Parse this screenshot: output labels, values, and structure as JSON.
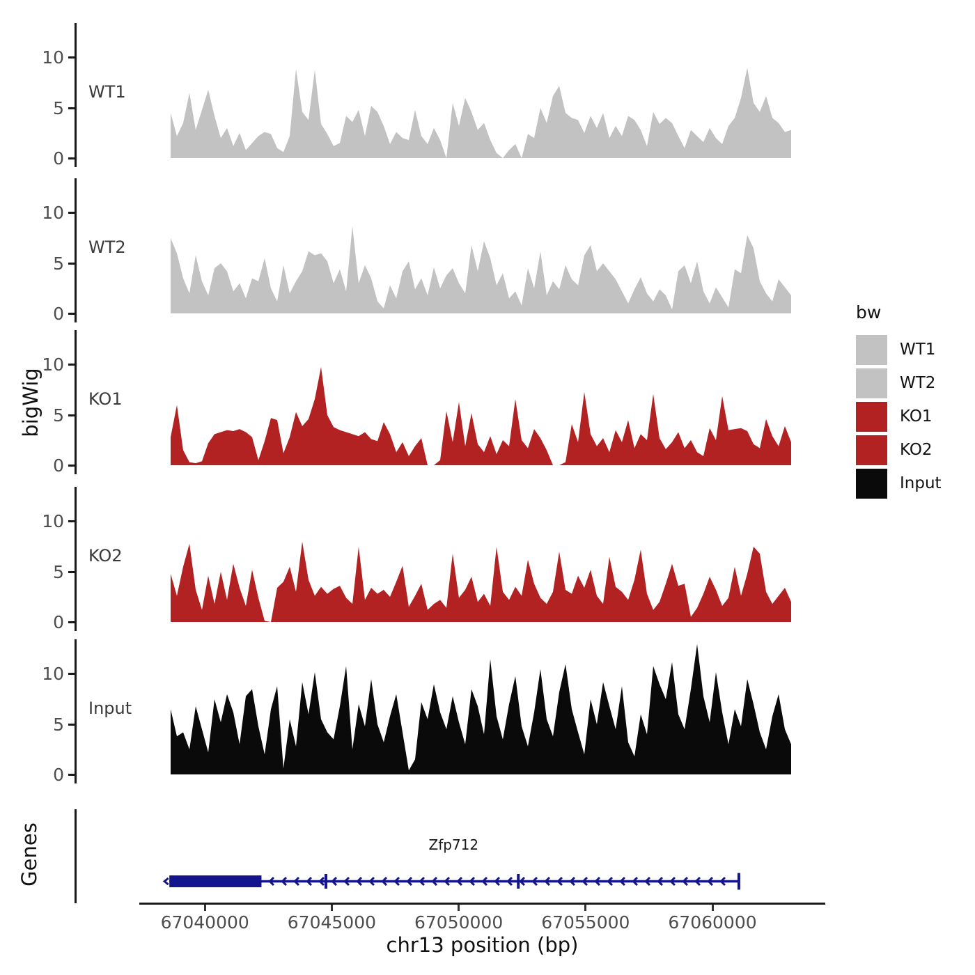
{
  "figure": {
    "y_axis_title": "bigWig",
    "genes_axis_title": "Genes",
    "x_axis_title": "chr13 position (bp)"
  },
  "colors": {
    "gray": "#c2c2c2",
    "red": "#b22222",
    "black": "#0a0a0a",
    "gene_blue": "#14148c",
    "axis": "#1a1a1a",
    "tick_text": "#4d4d4d"
  },
  "legend": {
    "title": "bw",
    "items": [
      {
        "label": "WT1",
        "color": "#c2c2c2"
      },
      {
        "label": "WT2",
        "color": "#c2c2c2"
      },
      {
        "label": "KO1",
        "color": "#b22222"
      },
      {
        "label": "KO2",
        "color": "#b22222"
      },
      {
        "label": "Input",
        "color": "#0a0a0a"
      }
    ]
  },
  "x_axis": {
    "tick_values": [
      67040000,
      67045000,
      67050000,
      67055000,
      67060000
    ],
    "tick_labels": [
      "67040000",
      "67045000",
      "67050000",
      "67055000",
      "67060000"
    ]
  },
  "y_axis": {
    "tick_values": [
      0,
      5,
      10
    ],
    "tick_labels": [
      "0",
      "5",
      "10"
    ],
    "display_max": 13.4
  },
  "chart_data": {
    "type": "area",
    "title": "",
    "xlabel": "chr13 position (bp)",
    "ylabel": "bigWig",
    "x_range_bp": [
      67038650,
      67063100
    ],
    "ylim": [
      0,
      13.4
    ],
    "grid": false,
    "legend_position": "right",
    "tracks": [
      {
        "name": "WT1",
        "color": "#c2c2c2",
        "values": [
          4.5,
          2.2,
          3.5,
          6.5,
          2.8,
          4.8,
          6.8,
          4.2,
          2.0,
          3.0,
          1.2,
          2.5,
          0.8,
          1.5,
          2.2,
          2.6,
          2.4,
          1.0,
          0.6,
          2.2,
          8.9,
          4.6,
          3.8,
          8.8,
          3.4,
          2.4,
          1.2,
          1.5,
          4.2,
          3.6,
          4.8,
          2.2,
          5.2,
          4.6,
          3.2,
          1.4,
          2.6,
          2.0,
          1.8,
          4.8,
          2.2,
          1.4,
          3.0,
          1.8,
          0.0,
          5.5,
          3.2,
          6.0,
          4.6,
          2.8,
          3.5,
          1.8,
          0.5,
          0.0,
          0.8,
          1.4,
          0.0,
          2.4,
          2.0,
          5.0,
          3.5,
          6.2,
          7.2,
          4.5,
          4.0,
          3.8,
          2.5,
          4.2,
          3.0,
          4.5,
          2.0,
          3.2,
          2.2,
          4.2,
          3.8,
          2.8,
          1.2,
          4.6,
          3.4,
          4.0,
          3.5,
          2.2,
          1.0,
          2.8,
          2.2,
          1.6,
          3.0,
          2.0,
          1.4,
          3.2,
          4.0,
          6.0,
          9.0,
          5.5,
          4.6,
          6.2,
          4.0,
          3.5,
          2.6,
          2.8
        ]
      },
      {
        "name": "WT2",
        "color": "#c2c2c2",
        "values": [
          7.5,
          6.0,
          3.5,
          2.0,
          5.8,
          3.2,
          1.8,
          4.5,
          5.0,
          4.2,
          2.2,
          3.0,
          1.5,
          3.5,
          3.2,
          5.5,
          2.5,
          1.2,
          4.8,
          2.0,
          3.2,
          4.2,
          6.2,
          5.8,
          6.0,
          5.2,
          3.0,
          4.4,
          2.2,
          8.7,
          3.0,
          4.8,
          3.5,
          1.2,
          0.5,
          2.8,
          1.5,
          4.2,
          5.2,
          2.4,
          3.5,
          1.8,
          4.6,
          2.5,
          3.8,
          4.5,
          3.0,
          2.0,
          6.8,
          4.2,
          7.2,
          5.5,
          2.8,
          4.0,
          1.5,
          2.2,
          0.8,
          4.5,
          2.5,
          6.2,
          1.8,
          3.2,
          2.4,
          4.8,
          3.4,
          2.8,
          5.8,
          6.8,
          4.2,
          5.0,
          4.2,
          3.4,
          2.2,
          1.0,
          2.4,
          3.6,
          2.0,
          1.2,
          2.4,
          1.8,
          0.4,
          4.2,
          4.8,
          3.0,
          5.2,
          2.2,
          1.0,
          2.6,
          1.6,
          0.6,
          4.4,
          4.0,
          7.8,
          6.5,
          3.2,
          2.0,
          1.2,
          3.4,
          2.6,
          1.8
        ]
      },
      {
        "name": "KO1",
        "color": "#b22222",
        "values": [
          2.8,
          6.0,
          1.5,
          0.3,
          0.2,
          0.4,
          2.2,
          3.1,
          3.3,
          3.5,
          3.4,
          3.6,
          3.3,
          2.8,
          0.5,
          2.4,
          4.7,
          4.5,
          1.2,
          2.8,
          5.3,
          3.9,
          4.6,
          6.6,
          9.8,
          5.0,
          3.8,
          3.5,
          3.3,
          3.1,
          2.9,
          3.3,
          2.6,
          2.4,
          4.3,
          3.1,
          1.3,
          2.3,
          0.9,
          1.9,
          2.7,
          0.0,
          0.0,
          0.5,
          5.4,
          2.3,
          6.3,
          1.9,
          5.2,
          2.1,
          1.3,
          2.9,
          1.1,
          2.5,
          1.9,
          6.6,
          2.5,
          1.7,
          3.6,
          2.7,
          1.5,
          0.0,
          0.0,
          0.3,
          4.1,
          2.3,
          7.3,
          3.1,
          1.9,
          2.7,
          1.3,
          3.5,
          2.3,
          4.5,
          1.7,
          3.1,
          2.5,
          7.1,
          2.7,
          1.6,
          2.3,
          3.3,
          1.7,
          2.5,
          1.3,
          0.9,
          3.7,
          2.5,
          6.9,
          3.5,
          3.6,
          3.7,
          3.4,
          2.1,
          1.7,
          4.6,
          2.9,
          1.9,
          3.9,
          2.3
        ]
      },
      {
        "name": "KO2",
        "color": "#b22222",
        "values": [
          4.8,
          2.6,
          5.5,
          7.8,
          3.2,
          1.2,
          4.6,
          1.8,
          5.0,
          2.2,
          5.8,
          3.4,
          1.6,
          5.2,
          2.4,
          0.1,
          0.0,
          3.4,
          4.0,
          5.5,
          3.0,
          8.0,
          4.2,
          2.6,
          3.5,
          2.8,
          3.3,
          3.6,
          2.4,
          1.8,
          7.5,
          2.2,
          3.4,
          2.8,
          3.2,
          2.5,
          4.0,
          5.6,
          1.5,
          2.6,
          3.8,
          1.2,
          1.8,
          2.2,
          1.4,
          6.8,
          2.4,
          3.2,
          4.5,
          2.0,
          2.8,
          1.6,
          7.5,
          3.0,
          2.2,
          3.5,
          2.6,
          6.2,
          3.8,
          2.4,
          1.8,
          3.0,
          7.0,
          3.2,
          2.8,
          4.6,
          3.4,
          5.2,
          2.6,
          1.8,
          6.5,
          3.5,
          3.0,
          2.2,
          4.2,
          7.2,
          2.8,
          1.2,
          2.0,
          3.8,
          5.8,
          3.6,
          3.8,
          0.5,
          1.4,
          2.8,
          4.5,
          3.2,
          1.6,
          2.4,
          5.5,
          2.6,
          4.8,
          7.5,
          6.8,
          3.0,
          1.8,
          2.6,
          3.4,
          2.0
        ]
      },
      {
        "name": "Input",
        "color": "#0a0a0a",
        "values": [
          6.5,
          3.8,
          4.2,
          2.5,
          6.8,
          4.5,
          2.2,
          7.5,
          5.2,
          8.0,
          6.2,
          3.0,
          7.8,
          8.5,
          4.8,
          2.0,
          6.5,
          8.8,
          0.6,
          5.5,
          2.8,
          9.2,
          6.0,
          10.2,
          5.5,
          4.2,
          3.5,
          6.8,
          10.8,
          2.5,
          7.0,
          4.8,
          9.5,
          5.0,
          3.2,
          5.8,
          8.0,
          4.2,
          0.4,
          1.5,
          7.2,
          5.5,
          9.0,
          6.2,
          4.5,
          7.8,
          5.2,
          3.0,
          8.5,
          6.8,
          4.0,
          11.5,
          5.8,
          3.5,
          7.0,
          9.8,
          4.8,
          2.8,
          6.2,
          10.5,
          5.5,
          3.8,
          8.2,
          11.0,
          6.5,
          4.2,
          2.0,
          7.5,
          5.0,
          9.2,
          6.8,
          4.5,
          8.8,
          3.2,
          1.8,
          6.0,
          4.0,
          10.8,
          9.0,
          7.5,
          11.2,
          6.0,
          4.5,
          8.5,
          13.0,
          7.8,
          5.2,
          10.2,
          6.2,
          3.0,
          6.5,
          4.8,
          9.5,
          7.0,
          4.2,
          2.5,
          5.8,
          8.0,
          4.5,
          3.0
        ]
      }
    ],
    "gene": {
      "name": "Zfp712",
      "strand": "-",
      "color": "#14148c",
      "thick_exon_bp": [
        67038600,
        67042230
      ],
      "line_end_bp": 67061040,
      "exon_marks_bp": [
        67044770,
        67052350
      ],
      "label_center_bp": 67049800
    }
  }
}
